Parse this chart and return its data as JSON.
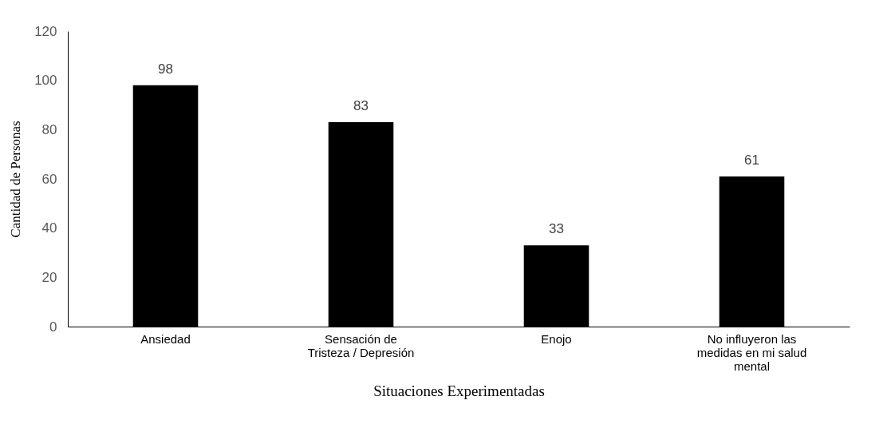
{
  "chart_data": {
    "type": "bar",
    "xlabel": "Situaciones Experimentadas",
    "ylabel": "Cantidad de Personas",
    "categories": [
      "Ansiedad",
      "Sensación de Tristeza / Depresión",
      "Enojo",
      "No influyeron las medidas en mi salud mental"
    ],
    "values": [
      98,
      83,
      33,
      61
    ],
    "color": "#000000",
    "ylim": [
      0,
      120
    ],
    "yticks": [
      0,
      20,
      40,
      60,
      80,
      100,
      120
    ],
    "grid": false,
    "data_labels": true
  }
}
